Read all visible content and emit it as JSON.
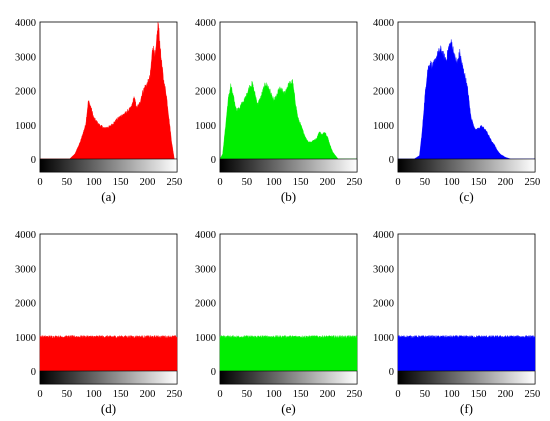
{
  "chart_data": [
    {
      "type": "area",
      "caption": "(a)",
      "color": "#ff0000",
      "xlim": [
        0,
        255
      ],
      "ylim": [
        0,
        4000
      ],
      "xticks": [
        "0",
        "50",
        "100",
        "150",
        "200",
        "250"
      ],
      "yticks": [
        "0",
        "1000",
        "2000",
        "3000",
        "4000"
      ],
      "x": [
        0,
        40,
        55,
        65,
        75,
        85,
        90,
        95,
        100,
        110,
        120,
        130,
        140,
        150,
        160,
        170,
        175,
        180,
        185,
        190,
        195,
        200,
        205,
        210,
        215,
        220,
        225,
        230,
        235,
        240,
        245,
        250,
        255
      ],
      "y": [
        0,
        0,
        0,
        150,
        500,
        1000,
        1700,
        1500,
        1200,
        1000,
        900,
        950,
        1100,
        1250,
        1350,
        1500,
        1800,
        1500,
        1600,
        1900,
        2100,
        2200,
        2400,
        3300,
        3000,
        4000,
        3000,
        2300,
        1900,
        1200,
        500,
        0,
        0
      ]
    },
    {
      "type": "area",
      "caption": "(b)",
      "color": "#00ee00",
      "xlim": [
        0,
        255
      ],
      "ylim": [
        0,
        4000
      ],
      "xticks": [
        "0",
        "50",
        "100",
        "150",
        "200",
        "250"
      ],
      "yticks": [
        "0",
        "1000",
        "2000",
        "3000",
        "4000"
      ],
      "x": [
        0,
        5,
        10,
        15,
        20,
        25,
        30,
        35,
        40,
        45,
        50,
        55,
        60,
        65,
        70,
        75,
        80,
        85,
        90,
        95,
        100,
        105,
        110,
        115,
        120,
        125,
        130,
        135,
        140,
        145,
        150,
        155,
        160,
        165,
        170,
        175,
        180,
        185,
        190,
        195,
        200,
        205,
        210,
        215,
        220
      ],
      "y": [
        0,
        150,
        900,
        1700,
        2150,
        1800,
        1450,
        1450,
        1600,
        1700,
        1900,
        2100,
        2200,
        1900,
        1600,
        1750,
        2000,
        2200,
        2100,
        1900,
        1700,
        1800,
        2050,
        2000,
        1900,
        2100,
        2200,
        2250,
        1700,
        1200,
        1000,
        800,
        600,
        500,
        500,
        550,
        600,
        800,
        700,
        800,
        650,
        400,
        200,
        100,
        0
      ]
    },
    {
      "type": "area",
      "caption": "(c)",
      "color": "#0000ff",
      "xlim": [
        0,
        255
      ],
      "ylim": [
        0,
        4000
      ],
      "xticks": [
        "0",
        "50",
        "100",
        "150",
        "200",
        "250"
      ],
      "yticks": [
        "0",
        "1000",
        "2000",
        "3000",
        "4000"
      ],
      "x": [
        0,
        30,
        40,
        45,
        50,
        55,
        60,
        65,
        70,
        75,
        80,
        85,
        90,
        95,
        100,
        105,
        110,
        115,
        120,
        125,
        130,
        135,
        140,
        145,
        150,
        155,
        160,
        165,
        170,
        175,
        180,
        185,
        190,
        200,
        210,
        255
      ],
      "y": [
        0,
        0,
        100,
        800,
        1800,
        2600,
        2800,
        2700,
        2900,
        3100,
        3200,
        3000,
        2900,
        3300,
        3400,
        3000,
        2800,
        3100,
        2700,
        2400,
        2000,
        1300,
        1000,
        850,
        900,
        950,
        900,
        800,
        650,
        500,
        400,
        250,
        150,
        50,
        0,
        0
      ]
    },
    {
      "type": "area",
      "caption": "(d)",
      "color": "#ff0000",
      "xlim": [
        0,
        255
      ],
      "ylim": [
        0,
        4000
      ],
      "xticks": [
        "0",
        "50",
        "100",
        "150",
        "200",
        "250"
      ],
      "yticks": [
        "0",
        "1000",
        "2000",
        "3000",
        "4000"
      ],
      "x": [
        0,
        50,
        100,
        150,
        200,
        250,
        255
      ],
      "y": [
        1000,
        1000,
        1000,
        1000,
        1000,
        1000,
        1000
      ]
    },
    {
      "type": "area",
      "caption": "(e)",
      "color": "#00ee00",
      "xlim": [
        0,
        255
      ],
      "ylim": [
        0,
        4000
      ],
      "xticks": [
        "0",
        "50",
        "100",
        "150",
        "200",
        "250"
      ],
      "yticks": [
        "0",
        "1000",
        "2000",
        "3000",
        "4000"
      ],
      "x": [
        0,
        50,
        100,
        150,
        200,
        250,
        255
      ],
      "y": [
        1000,
        1000,
        1000,
        1000,
        1000,
        1000,
        1000
      ]
    },
    {
      "type": "area",
      "caption": "(f)",
      "color": "#0000ff",
      "xlim": [
        0,
        255
      ],
      "ylim": [
        0,
        4000
      ],
      "xticks": [
        "0",
        "50",
        "100",
        "150",
        "200",
        "250"
      ],
      "yticks": [
        "0",
        "1000",
        "2000",
        "3000",
        "4000"
      ],
      "x": [
        0,
        50,
        100,
        150,
        200,
        250,
        255
      ],
      "y": [
        1000,
        1000,
        1000,
        1000,
        1000,
        1000,
        1000
      ]
    }
  ]
}
